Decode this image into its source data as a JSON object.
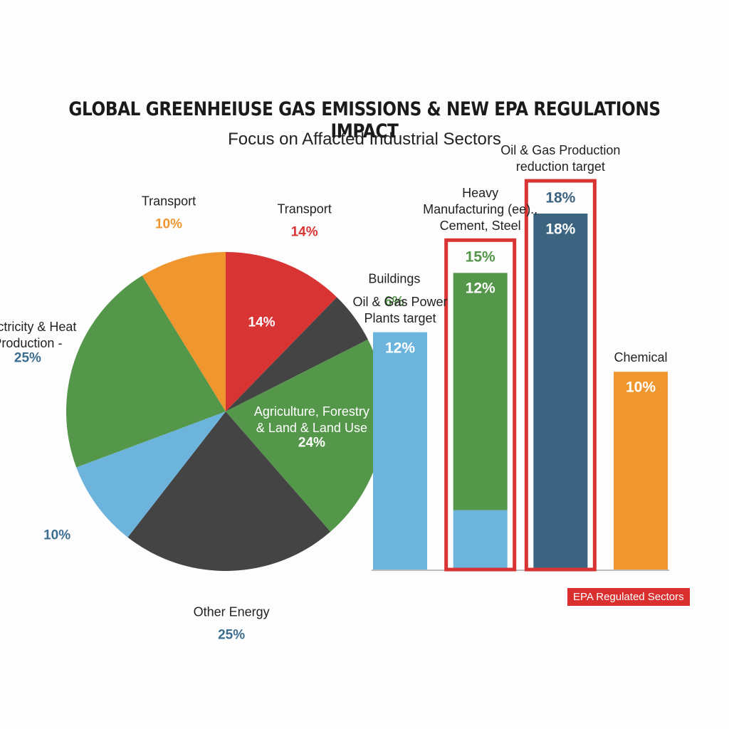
{
  "chart_data": [
    {
      "type": "pie",
      "title": "GLOBAL GREENHEIUSE GAS EMISSIONS & NEW EPA REGULATIONS IMPACT",
      "subtitle": "Focus on Affacted Industrial Sectors",
      "categories": [
        "Transport",
        "Buildings",
        "Agriculture, Forestry & Land & Land Use",
        "Other Energy",
        null,
        "Electricity & Heat Production -",
        "Transport"
      ],
      "values": [
        14,
        6,
        24,
        25,
        10,
        25,
        10
      ],
      "value_labels": [
        "14%",
        "6%",
        "24%",
        "25%",
        "10%",
        "25%",
        "10%"
      ],
      "colors": [
        "#d93434",
        "#444444",
        "#54964a",
        "#444444",
        "#6cb4dc",
        "#54964a",
        "#f0962e"
      ],
      "label_colors": [
        "#d93434",
        "#54964a",
        "#ffffff",
        "#3c6e8f",
        "#3c6e8f",
        "#3c6e8f",
        "#f0962e"
      ]
    },
    {
      "type": "bar",
      "categories": [
        "Oil & Gas Power Plants target",
        "Heavy Manufacturing (ee)., Cement, Steel",
        "Oil & Gas Production reduction target",
        "Chemical"
      ],
      "values": [
        12,
        12,
        18,
        10
      ],
      "value_labels": [
        "12%",
        "12%",
        "18%",
        "10%"
      ],
      "colors": [
        "#6cb4dc",
        "#54964a",
        "#3c6480",
        "#f0962e"
      ],
      "base_values": [
        null,
        3,
        null,
        null
      ],
      "base_color": "#6cb4dc",
      "top_labels": [
        null,
        "15%",
        "18%",
        null
      ],
      "top_label_colors": [
        null,
        "#54964a",
        "#3c6480",
        null
      ],
      "regulated": [
        false,
        true,
        true,
        false
      ],
      "regulated_color": "#d93434",
      "legend": "EPA Regulated Sectors"
    }
  ]
}
